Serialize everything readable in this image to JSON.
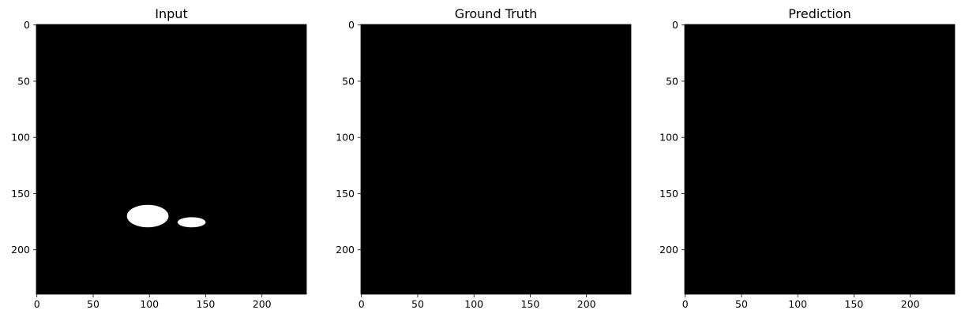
{
  "chart_data": [
    {
      "type": "heatmap",
      "title": "Input",
      "xlabel": "",
      "ylabel": "",
      "xlim": [
        -0.5,
        239.5
      ],
      "ylim": [
        239.5,
        -0.5
      ],
      "xticks": [
        0,
        50,
        100,
        150,
        200
      ],
      "yticks": [
        0,
        50,
        100,
        150,
        200
      ],
      "grid": false,
      "background_value": 0,
      "foreground_value": 1,
      "colormap": [
        "#000000",
        "#ffffff"
      ],
      "regions": [
        {
          "value": 1,
          "x_range": [
            80,
            117
          ],
          "y_range": [
            160,
            180
          ]
        },
        {
          "value": 1,
          "x_range": [
            125,
            150
          ],
          "y_range": [
            171,
            180
          ]
        }
      ]
    },
    {
      "type": "heatmap",
      "title": "Ground Truth",
      "xlabel": "",
      "ylabel": "",
      "xlim": [
        -0.5,
        239.5
      ],
      "ylim": [
        239.5,
        -0.5
      ],
      "xticks": [
        0,
        50,
        100,
        150,
        200
      ],
      "yticks": [
        0,
        50,
        100,
        150,
        200
      ],
      "grid": false,
      "background_value": 0,
      "colormap": [
        "#000000",
        "#ffffff"
      ],
      "regions": []
    },
    {
      "type": "heatmap",
      "title": "Prediction",
      "xlabel": "",
      "ylabel": "",
      "xlim": [
        -0.5,
        239.5
      ],
      "ylim": [
        239.5,
        -0.5
      ],
      "xticks": [
        0,
        50,
        100,
        150,
        200
      ],
      "yticks": [
        0,
        50,
        100,
        150,
        200
      ],
      "grid": false,
      "background_value": 0,
      "colormap": [
        "#000000",
        "#ffffff"
      ],
      "regions": []
    }
  ]
}
